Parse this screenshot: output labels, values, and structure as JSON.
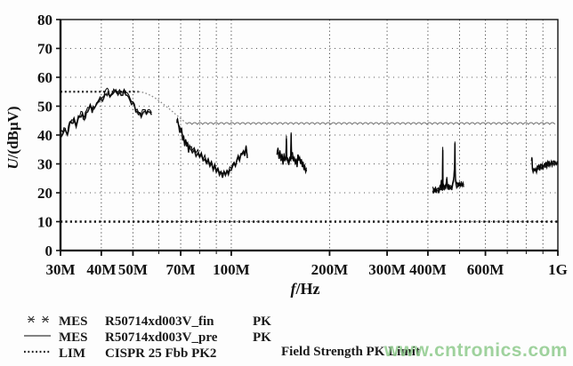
{
  "watermark": {
    "text": "www.cntronics.com",
    "color": "#8fcb8d"
  },
  "legend": {
    "rows": [
      {
        "symbol": "asterisk-markers",
        "col1": "MES",
        "col2": "R50714xd003V_fin",
        "col3": "PK"
      },
      {
        "symbol": "solid-line",
        "col1": "MES",
        "col2": "R50714xd003V_pre",
        "col3": "PK"
      },
      {
        "symbol": "dotted-line",
        "col1": "LIM",
        "col2": "CISPR 25 Fbb PK2",
        "col3": ""
      }
    ],
    "extra_limit_label": "Field Strength PK  Limit"
  },
  "chart_data": {
    "type": "line",
    "title": "",
    "x_axis": {
      "label_var": "f",
      "label_rest": "/Hz",
      "scale": "log",
      "unit": "Hz",
      "min_mhz": 30,
      "max_mhz": 1000,
      "ticks": [
        {
          "mhz": 30,
          "label": "30M"
        },
        {
          "mhz": 40,
          "label": "40M"
        },
        {
          "mhz": 50,
          "label": "50M"
        },
        {
          "mhz": 70,
          "label": "70M"
        },
        {
          "mhz": 100,
          "label": "100M"
        },
        {
          "mhz": 200,
          "label": "200M"
        },
        {
          "mhz": 300,
          "label": "300M"
        },
        {
          "mhz": 400,
          "label": "400M"
        },
        {
          "mhz": 600,
          "label": "600M"
        },
        {
          "mhz": 1000,
          "label": "1G"
        }
      ],
      "grid_mhz": [
        40,
        50,
        60,
        70,
        80,
        90,
        100,
        200,
        300,
        400,
        500,
        600,
        700,
        800,
        900,
        1000
      ]
    },
    "y_axis": {
      "label_var": "U",
      "label_rest": "/(dBµV)",
      "min": 0,
      "max": 80,
      "step": 10,
      "tick_labels": [
        "0",
        "10",
        "20",
        "30",
        "40",
        "50",
        "60",
        "70",
        "80"
      ],
      "grid_values": [
        10,
        20,
        30,
        40,
        50,
        60,
        70
      ]
    },
    "series": [
      {
        "name": "MES R50714xd003V_fin PK",
        "style": "noisy-black-with-markers",
        "segments": [
          [
            [
              30,
              41
            ],
            [
              30.5,
              40
            ],
            [
              31,
              42
            ],
            [
              31.5,
              40
            ],
            [
              32,
              44
            ],
            [
              33,
              45
            ],
            [
              33.5,
              43
            ],
            [
              34,
              46
            ],
            [
              35,
              47
            ],
            [
              35.5,
              45
            ],
            [
              36,
              48
            ],
            [
              37,
              50
            ],
            [
              37.5,
              48
            ],
            [
              38,
              49
            ],
            [
              39,
              51
            ],
            [
              40,
              52
            ],
            [
              41,
              54
            ],
            [
              42,
              55
            ],
            [
              42.5,
              53
            ],
            [
              43,
              54
            ],
            [
              44,
              55
            ],
            [
              45,
              54
            ],
            [
              45.5,
              55
            ],
            [
              46,
              54
            ],
            [
              47,
              55
            ],
            [
              47.5,
              54
            ],
            [
              48,
              54
            ],
            [
              48.5,
              53
            ],
            [
              49,
              52
            ],
            [
              50,
              51
            ],
            [
              50.5,
              50
            ],
            [
              51,
              48
            ],
            [
              52,
              47
            ],
            [
              53,
              46.5
            ],
            [
              54,
              48
            ],
            [
              55,
              47
            ],
            [
              56,
              48
            ],
            [
              56.5,
              47.5
            ],
            [
              57,
              47
            ]
          ],
          [
            [
              68,
              44
            ],
            [
              68.5,
              45
            ],
            [
              69,
              43
            ],
            [
              70,
              41
            ],
            [
              70.5,
              42
            ],
            [
              71,
              38
            ],
            [
              71.5,
              39
            ],
            [
              72,
              36
            ],
            [
              72.5,
              38
            ],
            [
              73,
              36
            ],
            [
              73.5,
              37
            ],
            [
              74,
              34
            ],
            [
              74.5,
              36
            ],
            [
              75,
              35
            ],
            [
              76,
              34
            ],
            [
              77,
              35
            ],
            [
              78,
              33
            ],
            [
              79,
              34
            ],
            [
              80,
              32
            ],
            [
              81,
              33
            ],
            [
              82,
              31
            ],
            [
              83,
              32
            ],
            [
              84,
              30
            ],
            [
              85,
              31
            ],
            [
              86,
              29
            ],
            [
              87,
              30
            ],
            [
              88,
              28
            ],
            [
              89,
              29
            ],
            [
              90,
              27
            ],
            [
              91,
              28
            ],
            [
              92,
              26
            ],
            [
              93,
              27
            ],
            [
              94,
              25.5
            ],
            [
              95,
              27
            ],
            [
              96,
              26
            ],
            [
              97,
              27.5
            ],
            [
              98,
              26.5
            ],
            [
              99,
              28
            ],
            [
              100,
              28
            ],
            [
              101,
              29
            ],
            [
              102,
              30
            ],
            [
              103,
              29
            ],
            [
              104,
              31
            ],
            [
              105,
              32
            ],
            [
              106,
              31
            ],
            [
              107,
              33
            ],
            [
              108,
              33
            ],
            [
              109,
              34
            ],
            [
              110,
              33
            ],
            [
              111,
              36
            ],
            [
              112,
              32
            ]
          ],
          [
            [
              138,
              33
            ],
            [
              139,
              35
            ],
            [
              140,
              32
            ],
            [
              141,
              34
            ],
            [
              142,
              31
            ],
            [
              143,
              33
            ],
            [
              144,
              30
            ],
            [
              145,
              33
            ],
            [
              146,
              31
            ],
            [
              147,
              32
            ],
            [
              147.5,
              39
            ],
            [
              148,
              32
            ],
            [
              149,
              31
            ],
            [
              150,
              30
            ],
            [
              151,
              32
            ],
            [
              152,
              31
            ],
            [
              152.5,
              40
            ],
            [
              153,
              32
            ],
            [
              154,
              33
            ],
            [
              155,
              31
            ],
            [
              156,
              32
            ],
            [
              157,
              30
            ],
            [
              158,
              31
            ],
            [
              159,
              29
            ],
            [
              160,
              33
            ],
            [
              161,
              31
            ],
            [
              162,
              32
            ],
            [
              163,
              30
            ],
            [
              164,
              31
            ],
            [
              165,
              29
            ],
            [
              166,
              30
            ],
            [
              167,
              28
            ],
            [
              168,
              29
            ],
            [
              169,
              27
            ],
            [
              170,
              28
            ]
          ],
          [
            [
              414,
              21
            ],
            [
              416,
              20
            ],
            [
              418,
              21
            ],
            [
              420,
              20
            ],
            [
              422,
              21.5
            ],
            [
              424,
              20
            ],
            [
              426,
              21
            ],
            [
              428,
              20.5
            ],
            [
              430,
              21
            ],
            [
              432,
              20
            ],
            [
              434,
              21
            ],
            [
              436,
              22
            ],
            [
              438,
              21
            ],
            [
              440,
              24
            ],
            [
              441,
              21
            ],
            [
              443,
              21
            ],
            [
              444,
              35
            ],
            [
              445,
              21
            ],
            [
              447,
              22
            ],
            [
              449,
              21
            ],
            [
              451,
              22
            ],
            [
              453,
              21
            ],
            [
              455,
              23
            ],
            [
              457,
              25
            ],
            [
              459,
              22
            ],
            [
              461,
              21
            ],
            [
              463,
              22
            ],
            [
              465,
              21
            ],
            [
              467,
              22
            ],
            [
              469,
              21.5
            ],
            [
              471,
              22
            ],
            [
              473,
              21
            ],
            [
              475,
              22
            ],
            [
              477,
              23
            ],
            [
              479,
              24
            ],
            [
              481,
              26
            ],
            [
              483,
              30
            ],
            [
              484,
              37
            ],
            [
              485,
              28
            ],
            [
              486,
              24
            ],
            [
              488,
              23
            ],
            [
              490,
              22
            ],
            [
              492,
              22.5
            ],
            [
              494,
              22
            ],
            [
              496,
              23
            ],
            [
              498,
              22
            ],
            [
              500,
              23
            ],
            [
              503,
              22
            ],
            [
              506,
              23
            ],
            [
              509,
              22
            ],
            [
              512,
              23
            ],
            [
              515,
              22
            ]
          ],
          [
            [
              830,
              31
            ],
            [
              833,
              32
            ],
            [
              836,
              28
            ],
            [
              840,
              27
            ],
            [
              845,
              28
            ],
            [
              850,
              27.5
            ],
            [
              855,
              28
            ],
            [
              860,
              27
            ],
            [
              865,
              28.5
            ],
            [
              870,
              28
            ],
            [
              875,
              29
            ],
            [
              880,
              28
            ],
            [
              885,
              29
            ],
            [
              890,
              28.5
            ],
            [
              895,
              29
            ],
            [
              900,
              28
            ],
            [
              905,
              29
            ],
            [
              910,
              29.5
            ],
            [
              915,
              29
            ],
            [
              920,
              30
            ],
            [
              925,
              29
            ],
            [
              930,
              30
            ],
            [
              935,
              29.5
            ],
            [
              940,
              30
            ],
            [
              945,
              29
            ],
            [
              950,
              30
            ],
            [
              955,
              30
            ],
            [
              960,
              29.5
            ],
            [
              965,
              30
            ],
            [
              970,
              30
            ],
            [
              975,
              29.5
            ],
            [
              980,
              30
            ],
            [
              985,
              30
            ],
            [
              990,
              29.5
            ],
            [
              995,
              30
            ],
            [
              1000,
              30
            ]
          ]
        ]
      },
      {
        "name": "MES R50714xd003V_pre PK",
        "style": "thin-gray-line",
        "follows": "fin"
      },
      {
        "name": "LIM CISPR 25 Fbb PK2",
        "style": "bold-dotted-horizontal",
        "value_dbuv": 10
      },
      {
        "name": "Field Strength PK Limit",
        "style": "dotted-curve",
        "flat_segment": {
          "from_mhz": 30,
          "to_mhz": 52,
          "value_dbuv": 55
        },
        "arc_segment": {
          "from": [
            52,
            55
          ],
          "to": [
            73,
            44
          ]
        },
        "ripple_segment": {
          "from_mhz": 73,
          "to_mhz": 1000,
          "value_dbuv": 43.7
        }
      }
    ]
  }
}
